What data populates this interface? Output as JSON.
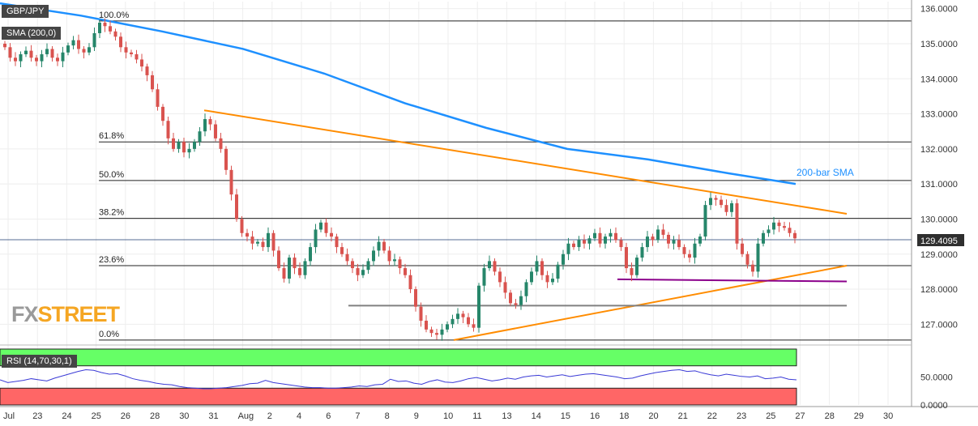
{
  "instrument": "GBP/JPY",
  "indicator_label": "SMA (200,0)",
  "rsi_label": "RSI (14,70,30,1)",
  "logo": {
    "part1": "FX",
    "part2": "STREET"
  },
  "price_label": "129.4095",
  "sma_label": "200-bar SMA",
  "colors": {
    "up": "#26866a",
    "down": "#d9534f",
    "sma": "#1e90ff",
    "trend": "#ff8c00",
    "support": "#8b008b",
    "flat": "#808080",
    "rsi_line": "#3a3ad6",
    "overbought": "#66ff66",
    "oversold": "#ff6666"
  },
  "chart_data": {
    "type": "candlestick",
    "price_axis": {
      "ylim": [
        126.5,
        136.2
      ],
      "ticks": [
        "127.0000",
        "128.0000",
        "129.0000",
        "130.0000",
        "131.0000",
        "132.0000",
        "133.0000",
        "134.0000",
        "135.0000",
        "136.0000"
      ]
    },
    "rsi_axis": {
      "ylim": [
        0,
        100
      ],
      "ticks": [
        "0.0000",
        "50.0000"
      ]
    },
    "x_ticks": [
      "Jul",
      "23",
      "24",
      "25",
      "26",
      "28",
      "30",
      "31",
      "Aug",
      "2",
      "4",
      "6",
      "7",
      "8",
      "9",
      "10",
      "11",
      "13",
      "14",
      "15",
      "16",
      "18",
      "20",
      "21",
      "22",
      "23",
      "25",
      "27",
      "28",
      "29",
      "30"
    ],
    "fibonacci": [
      {
        "label": "100.0%",
        "price": 135.65
      },
      {
        "label": "61.8%",
        "price": 132.2
      },
      {
        "label": "50.0%",
        "price": 131.1
      },
      {
        "label": "38.2%",
        "price": 130.02
      },
      {
        "label": "23.6%",
        "price": 128.67
      },
      {
        "label": "0.0%",
        "price": 126.55
      }
    ],
    "sma_200": [
      [
        0,
        136.15
      ],
      [
        100,
        135.8
      ],
      [
        200,
        135.35
      ],
      [
        300,
        134.85
      ],
      [
        400,
        134.15
      ],
      [
        500,
        133.3
      ],
      [
        600,
        132.6
      ],
      [
        700,
        132.0
      ],
      [
        800,
        131.7
      ],
      [
        900,
        131.3
      ],
      [
        982,
        131.0
      ]
    ],
    "trendlines": [
      {
        "name": "resistance",
        "from": [
          252,
          133.1
        ],
        "to": [
          1045,
          130.15
        ]
      },
      {
        "name": "support",
        "from": [
          560,
          126.55
        ],
        "to": [
          1045,
          128.67
        ]
      },
      {
        "name": "horizontal-support",
        "from": [
          762,
          128.28
        ],
        "to": [
          1045,
          128.22
        ]
      },
      {
        "name": "horizontal-level",
        "from": [
          430,
          127.53
        ],
        "to": [
          1045,
          127.53
        ]
      }
    ],
    "candles_close": [
      134.9,
      134.6,
      134.5,
      134.7,
      134.8,
      134.6,
      134.5,
      134.7,
      134.85,
      134.6,
      134.5,
      134.75,
      134.95,
      135.1,
      134.85,
      134.75,
      134.9,
      135.3,
      135.6,
      135.5,
      135.35,
      135.2,
      134.9,
      134.75,
      134.7,
      134.55,
      134.35,
      134.1,
      133.7,
      133.2,
      132.8,
      132.3,
      132.0,
      132.2,
      131.9,
      132.0,
      132.2,
      132.5,
      132.85,
      132.7,
      132.3,
      132.0,
      131.4,
      130.7,
      130.0,
      129.6,
      129.5,
      129.3,
      129.35,
      129.2,
      129.6,
      129.1,
      128.6,
      128.3,
      128.9,
      128.6,
      128.4,
      128.8,
      129.2,
      129.7,
      129.9,
      129.6,
      129.5,
      129.2,
      129.0,
      128.8,
      128.6,
      128.4,
      128.55,
      128.8,
      129.1,
      129.35,
      129.1,
      128.8,
      128.85,
      128.6,
      128.4,
      128.0,
      127.5,
      127.1,
      126.85,
      126.75,
      126.7,
      126.85,
      127.0,
      127.15,
      127.3,
      127.2,
      127.0,
      126.9,
      128.1,
      128.6,
      128.8,
      128.5,
      128.2,
      127.9,
      127.6,
      127.55,
      127.8,
      128.2,
      128.5,
      128.8,
      128.4,
      128.2,
      128.3,
      128.7,
      129.0,
      129.3,
      129.2,
      129.4,
      129.3,
      129.45,
      129.6,
      129.3,
      129.5,
      129.6,
      129.4,
      129.2,
      128.6,
      128.4,
      128.9,
      129.2,
      129.5,
      129.4,
      129.7,
      129.55,
      129.3,
      129.4,
      129.2,
      129.0,
      128.9,
      129.3,
      129.5,
      130.4,
      130.6,
      130.55,
      130.4,
      130.2,
      130.45,
      129.3,
      129.0,
      128.7,
      128.5,
      129.3,
      129.6,
      129.7,
      129.9,
      129.8,
      129.75,
      129.6,
      129.45
    ],
    "rsi_values": [
      45,
      40,
      42,
      44,
      47,
      45,
      43,
      48,
      52,
      56,
      60,
      63,
      62,
      58,
      55,
      56,
      52,
      47,
      44,
      42,
      39,
      37,
      36,
      33,
      31,
      30,
      29,
      29,
      30,
      31,
      33,
      35,
      38,
      39,
      44,
      40,
      38,
      36,
      34,
      32,
      31,
      31,
      30,
      30,
      31,
      32,
      34,
      33,
      36,
      37,
      46,
      42,
      43,
      39,
      37,
      42,
      45,
      41,
      40,
      43,
      47,
      49,
      46,
      43,
      45,
      48,
      46,
      50,
      52,
      53,
      50,
      52,
      54,
      51,
      53,
      55,
      56,
      54,
      52,
      50,
      47,
      48,
      52,
      55,
      58,
      60,
      62,
      63,
      60,
      61,
      57,
      54,
      52,
      55,
      53,
      51,
      50,
      52,
      47,
      48,
      50,
      46,
      45
    ]
  }
}
